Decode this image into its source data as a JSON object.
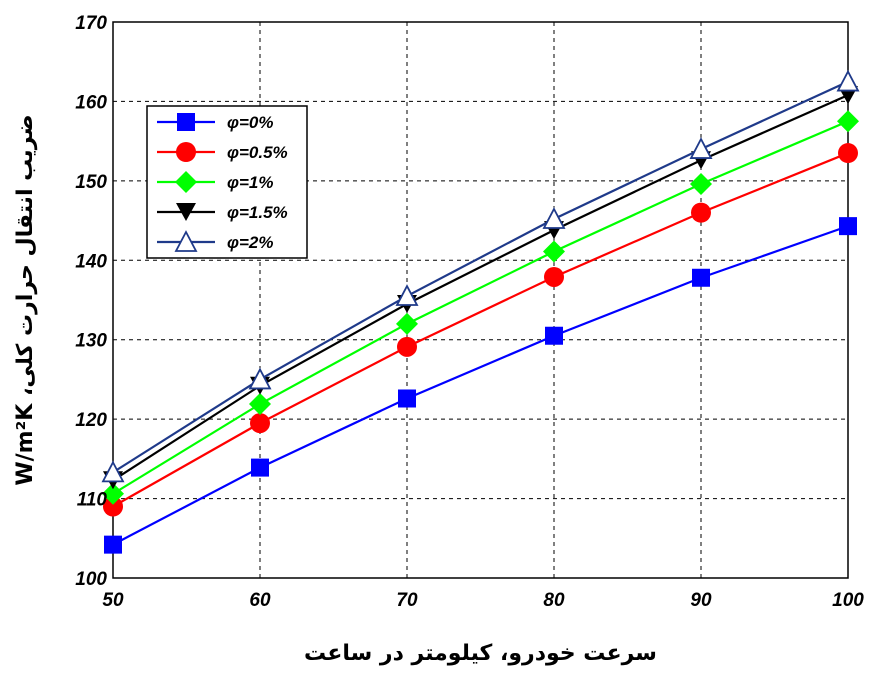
{
  "chart_data": {
    "type": "line",
    "xlabel": "سرعت خودرو، کیلومتر در ساعت",
    "ylabel": "ضریب انتقال حرارت کلی، W/m²K",
    "x": [
      50,
      60,
      70,
      80,
      90,
      100
    ],
    "xlim": [
      50,
      100
    ],
    "ylim": [
      100,
      170
    ],
    "xticks": [
      "50",
      "60",
      "70",
      "80",
      "90",
      "100"
    ],
    "yticks": [
      "100",
      "110",
      "120",
      "130",
      "140",
      "150",
      "160",
      "170"
    ],
    "grid": true,
    "legend_position": "top-left",
    "series": [
      {
        "name": "φ=0%",
        "color": "#0000ff",
        "marker": "square",
        "values": [
          104.2,
          113.9,
          122.6,
          130.5,
          137.8,
          144.3
        ]
      },
      {
        "name": "φ=0.5%",
        "color": "#ff0000",
        "marker": "circle",
        "values": [
          109.0,
          119.5,
          129.1,
          137.9,
          146.0,
          153.5
        ]
      },
      {
        "name": "φ=1%",
        "color": "#00ff00",
        "marker": "diamond",
        "values": [
          110.6,
          121.9,
          132.0,
          141.1,
          149.6,
          157.5
        ]
      },
      {
        "name": "φ=1.5%",
        "color": "#000000",
        "marker": "triangle-down",
        "values": [
          112.3,
          124.2,
          134.5,
          143.8,
          152.6,
          160.8
        ]
      },
      {
        "name": "φ=2%",
        "color": "#1f3a8a",
        "marker": "triangle-up",
        "values": [
          113.3,
          125.0,
          135.5,
          145.2,
          154.0,
          162.5
        ]
      }
    ]
  }
}
